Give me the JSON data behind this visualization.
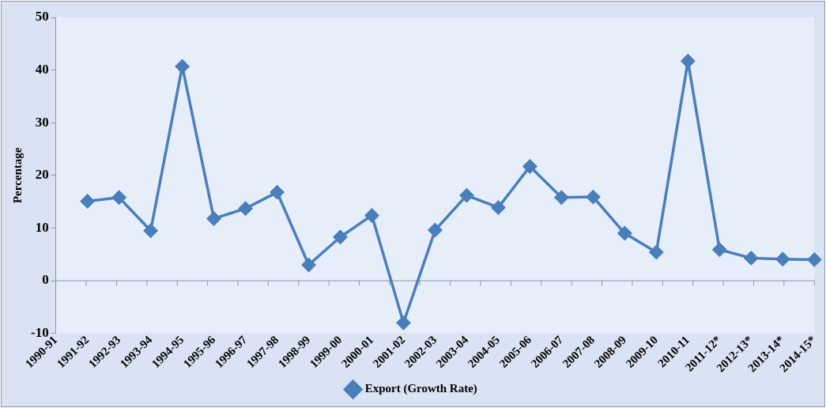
{
  "chart_data": {
    "type": "line",
    "ylabel": "Percentage",
    "categories": [
      "1990-91",
      "1991-92",
      "1992-93",
      "1993-94",
      "1994-95",
      "1995-96",
      "1996-97",
      "1997-98",
      "1998-99",
      "1999-00",
      "2000-01",
      "2001-02",
      "2002-03",
      "2003-04",
      "2004-05",
      "2005-06",
      "2006-07",
      "2007-08",
      "2008-09",
      "2009-10",
      "2010-11",
      "2011-12*",
      "2012-13*",
      "2013-14*",
      "2014-15*"
    ],
    "series": [
      {
        "name": "Export (Growth Rate)",
        "color": "#4a7ebb",
        "values": [
          null,
          15.1,
          15.8,
          9.5,
          40.7,
          11.8,
          13.7,
          16.8,
          3.0,
          8.3,
          12.4,
          -8.0,
          9.6,
          16.2,
          13.9,
          21.7,
          15.8,
          15.9,
          9.0,
          5.4,
          41.7,
          5.9,
          4.3,
          4.1,
          4.0
        ]
      }
    ],
    "ylim": [
      -10,
      50
    ],
    "yticks": [
      -10,
      0,
      10,
      20,
      30,
      40,
      50
    ],
    "ref_lines": [
      {
        "axis": "y",
        "value": 0,
        "color": "#8a97a8"
      }
    ],
    "grid": false,
    "legend": "bottom",
    "marker": "diamond",
    "line_style": "solid"
  }
}
